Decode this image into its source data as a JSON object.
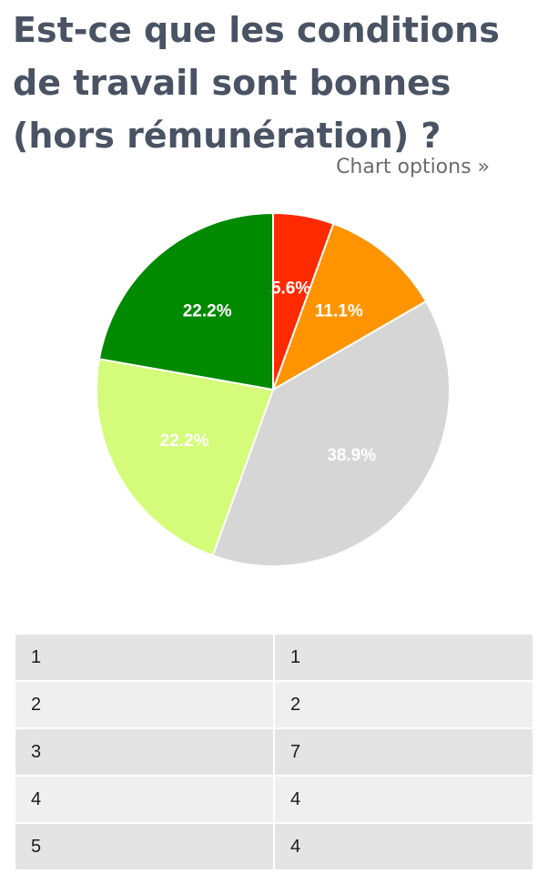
{
  "page_title": "Est-ce que les conditions de travail sont bonnes (hors rémunération) ?",
  "chart_options_label": "Chart options »",
  "chart_data": {
    "type": "pie",
    "categories": [
      "1",
      "2",
      "3",
      "4",
      "5"
    ],
    "values": [
      1,
      2,
      7,
      4,
      4
    ],
    "labels": [
      "5.6%",
      "11.1%",
      "38.9%",
      "22.2%",
      "22.2%"
    ],
    "colors": [
      "#ff2a00",
      "#ff9400",
      "#d6d6d6",
      "#d4fb79",
      "#008a00"
    ],
    "start": "12 o'clock",
    "direction": "clockwise"
  },
  "table": {
    "rows": [
      [
        "1",
        "1"
      ],
      [
        "2",
        "2"
      ],
      [
        "3",
        "7"
      ],
      [
        "4",
        "4"
      ],
      [
        "5",
        "4"
      ]
    ]
  }
}
